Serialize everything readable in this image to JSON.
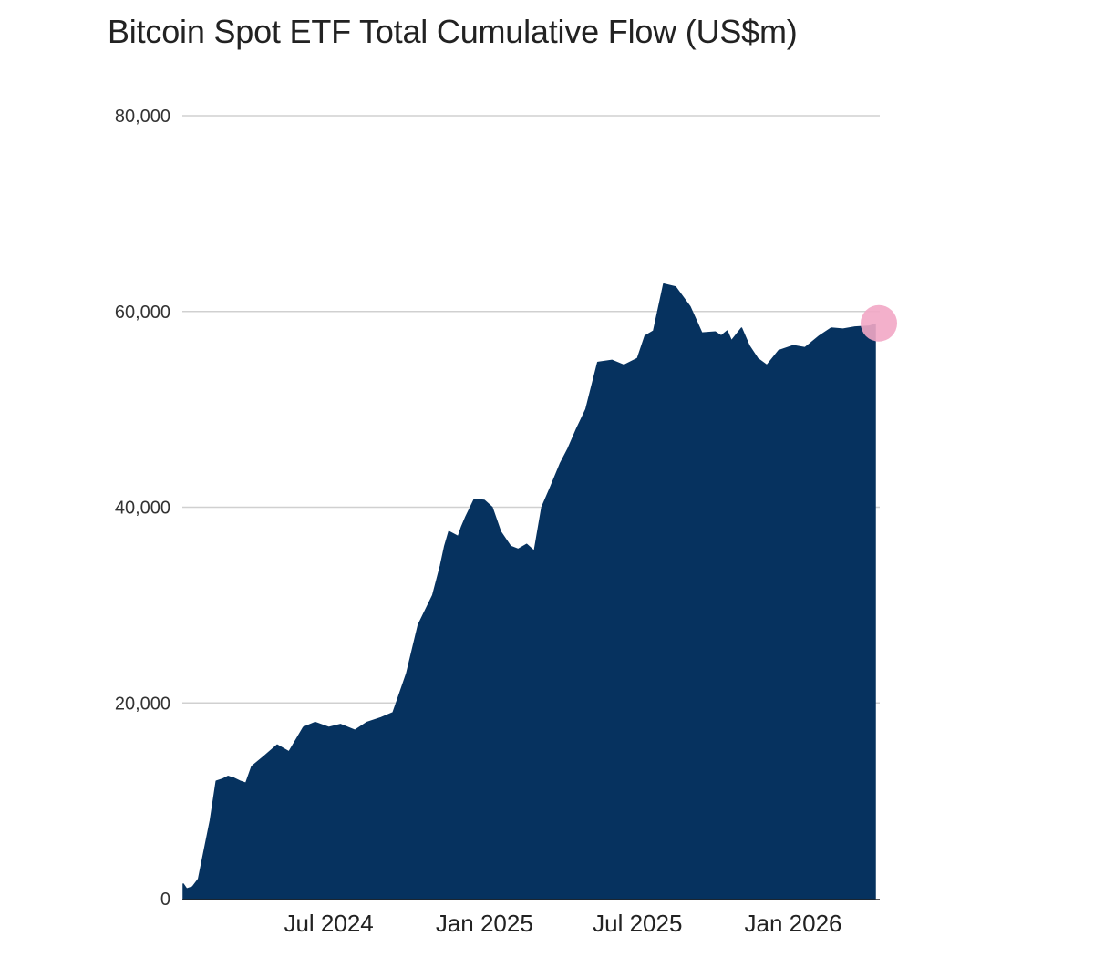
{
  "title": "Bitcoin Spot ETF Total Cumulative Flow (US$m)",
  "chart_data": {
    "type": "area",
    "title": "Bitcoin Spot ETF Total Cumulative Flow (US$m)",
    "xlabel": "",
    "ylabel": "",
    "ylim": [
      0,
      80000
    ],
    "xlim": [
      "2024-01-11",
      "2026-04-08"
    ],
    "y_ticks": [
      0,
      20000,
      40000,
      60000,
      80000
    ],
    "y_tick_labels": [
      "0",
      "20,000",
      "40,000",
      "60,000",
      "80,000"
    ],
    "x_ticks": [
      "2024-07-01",
      "2025-01-01",
      "2025-07-01",
      "2026-01-01"
    ],
    "x_tick_labels": [
      "Jul 2024",
      "Jan 2025",
      "Jul 2025",
      "Jan 2026"
    ],
    "grid": "horizontal",
    "legend": "none",
    "fill_color": "#06325F",
    "gridline_color": "#D0D0D0",
    "highlight_color": "#F2A7C5",
    "highlight_last_point": true,
    "series": [
      {
        "x": [
          "2024-01-11",
          "2024-01-15",
          "2024-01-22",
          "2024-01-29",
          "2024-02-05",
          "2024-02-12",
          "2024-02-19",
          "2024-02-26",
          "2024-03-04",
          "2024-03-11",
          "2024-03-18",
          "2024-03-25",
          "2024-04-01",
          "2024-04-15",
          "2024-05-01",
          "2024-05-15",
          "2024-06-01",
          "2024-06-15",
          "2024-07-01",
          "2024-07-15",
          "2024-08-01",
          "2024-08-15",
          "2024-09-01",
          "2024-09-15",
          "2024-10-01",
          "2024-10-15",
          "2024-11-01",
          "2024-11-10",
          "2024-11-15",
          "2024-11-20",
          "2024-12-01",
          "2024-12-05",
          "2024-12-10",
          "2024-12-20",
          "2025-01-01",
          "2025-01-10",
          "2025-01-20",
          "2025-02-01",
          "2025-02-10",
          "2025-02-20",
          "2025-03-01",
          "2025-03-10",
          "2025-03-20",
          "2025-04-01",
          "2025-04-10",
          "2025-04-20",
          "2025-05-01",
          "2025-05-15",
          "2025-06-01",
          "2025-06-15",
          "2025-07-01",
          "2025-07-10",
          "2025-07-20",
          "2025-08-01",
          "2025-08-15",
          "2025-09-01",
          "2025-09-15",
          "2025-10-01",
          "2025-10-08",
          "2025-10-15",
          "2025-10-20",
          "2025-11-01",
          "2025-11-10",
          "2025-11-20",
          "2025-12-01",
          "2025-12-15",
          "2026-01-01",
          "2026-01-15",
          "2026-02-01",
          "2026-02-15",
          "2026-03-01",
          "2026-03-15",
          "2026-04-01",
          "2026-04-08"
        ],
        "values": [
          1500,
          1000,
          1200,
          2000,
          5000,
          8000,
          12000,
          12200,
          12500,
          12300,
          12000,
          11800,
          13500,
          14500,
          15700,
          15000,
          17500,
          18000,
          17500,
          17800,
          17200,
          18000,
          18500,
          19000,
          23000,
          28000,
          31000,
          34000,
          36000,
          37500,
          37000,
          38000,
          39000,
          40800,
          40700,
          40000,
          37500,
          36000,
          35700,
          36200,
          35500,
          40000,
          42000,
          44500,
          46000,
          48000,
          50000,
          54800,
          55000,
          54500,
          55200,
          57500,
          58000,
          62800,
          62500,
          60500,
          57800,
          57900,
          57500,
          58000,
          57000,
          58300,
          56500,
          55200,
          54500,
          56000,
          56500,
          56300,
          57500,
          58300,
          58200,
          58400,
          58500,
          58700
        ]
      }
    ]
  }
}
